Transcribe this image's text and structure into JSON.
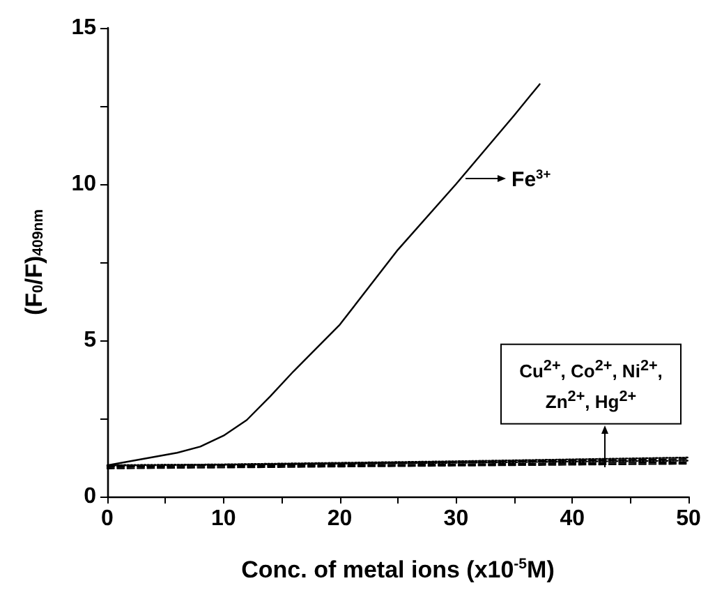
{
  "chart_data": {
    "type": "line",
    "xlabel": "Conc. of metal ions (x10$^{-5}$M)",
    "ylabel": "(F$_{0}$/F)$_{409nm}$",
    "xlim": [
      0,
      50
    ],
    "xticks": [
      0,
      {
        "value": 5,
        "label": null
      },
      10,
      {
        "value": 15,
        "label": null
      },
      20,
      {
        "value": 25,
        "label": null
      },
      30,
      {
        "value": 35,
        "label": null
      },
      40,
      {
        "value": 45,
        "label": null
      },
      50
    ],
    "ylim": [
      0,
      15
    ],
    "yticks": [
      0,
      {
        "value": 2.5,
        "label": null
      },
      5,
      {
        "value": 7.5,
        "label": null
      },
      10,
      {
        "value": 12.5,
        "label": null
      },
      15
    ],
    "grid": false,
    "marker": "none",
    "series": [
      {
        "color": "#000000",
        "line_style": "solid",
        "x": [
          0,
          3,
          6,
          8,
          10,
          12,
          14,
          16,
          20,
          25,
          30,
          35,
          37.2
        ],
        "values": [
          1.0,
          1.2,
          1.4,
          1.6,
          1.95,
          2.45,
          3.2,
          4.0,
          5.5,
          7.9,
          10.0,
          12.2,
          13.2
        ]
      },
      {
        "color": "#000000",
        "line_style": "dashed",
        "x": [
          0,
          10,
          20,
          30,
          40,
          50
        ],
        "values": [
          0.95,
          1.0,
          1.05,
          1.1,
          1.15,
          1.2
        ]
      },
      {
        "color": "#000000",
        "line_style": "dotted",
        "x": [
          0,
          10,
          20,
          30,
          40,
          50
        ],
        "values": [
          1.0,
          1.02,
          1.05,
          1.08,
          1.12,
          1.15
        ]
      },
      {
        "color": "#000000",
        "line_style": "dashed",
        "x": [
          0,
          10,
          20,
          30,
          40,
          50
        ],
        "values": [
          0.95,
          0.98,
          1.0,
          1.03,
          1.07,
          1.1
        ]
      },
      {
        "color": "#000000",
        "line_style": "dotted",
        "x": [
          0,
          10,
          20,
          30,
          40,
          50
        ],
        "values": [
          1.0,
          1.03,
          1.08,
          1.13,
          1.19,
          1.25
        ]
      },
      {
        "color": "#000000",
        "line_style": "dashed",
        "x": [
          0,
          10,
          20,
          30,
          40,
          50
        ],
        "values": [
          0.9,
          0.93,
          0.96,
          0.99,
          1.02,
          1.05
        ]
      }
    ],
    "annotations": [
      {
        "text": "Fe$^{3+}$",
        "x": 30.7,
        "y": 10.2
      },
      "Cu$^{2+}$, Co$^{2+}$, Ni$^{2+}$, Zn$^{2+}$, Hg$^{2+}$"
    ]
  }
}
